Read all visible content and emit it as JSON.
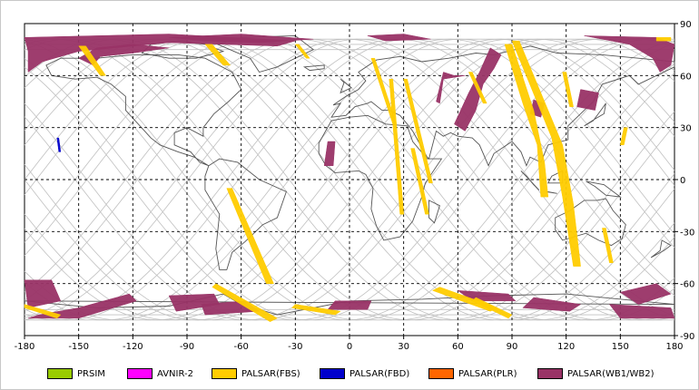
{
  "map": {
    "x_ticks": [
      "-180",
      "-150",
      "-120",
      "-90",
      "-60",
      "-30",
      "0",
      "30",
      "60",
      "90",
      "120",
      "150",
      "180"
    ],
    "y_ticks": [
      "90",
      "60",
      "30",
      "0",
      "-30",
      "-60",
      "-90"
    ],
    "background": "#ffffff",
    "grid_color": "#000000",
    "orbit_color": "#c0c0c0",
    "coastline_color": "#555555"
  },
  "legend": [
    {
      "label": "PRSIM",
      "color": "#99cc00"
    },
    {
      "label": "AVNIR-2",
      "color": "#ff00ff"
    },
    {
      "label": "PALSAR(FBS)",
      "color": "#ffcc00"
    },
    {
      "label": "PALSAR(FBD)",
      "color": "#0000cc"
    },
    {
      "label": "PALSAR(PLR)",
      "color": "#ff6600"
    },
    {
      "label": "PALSAR(WB1/WB2)",
      "color": "#993366"
    }
  ]
}
